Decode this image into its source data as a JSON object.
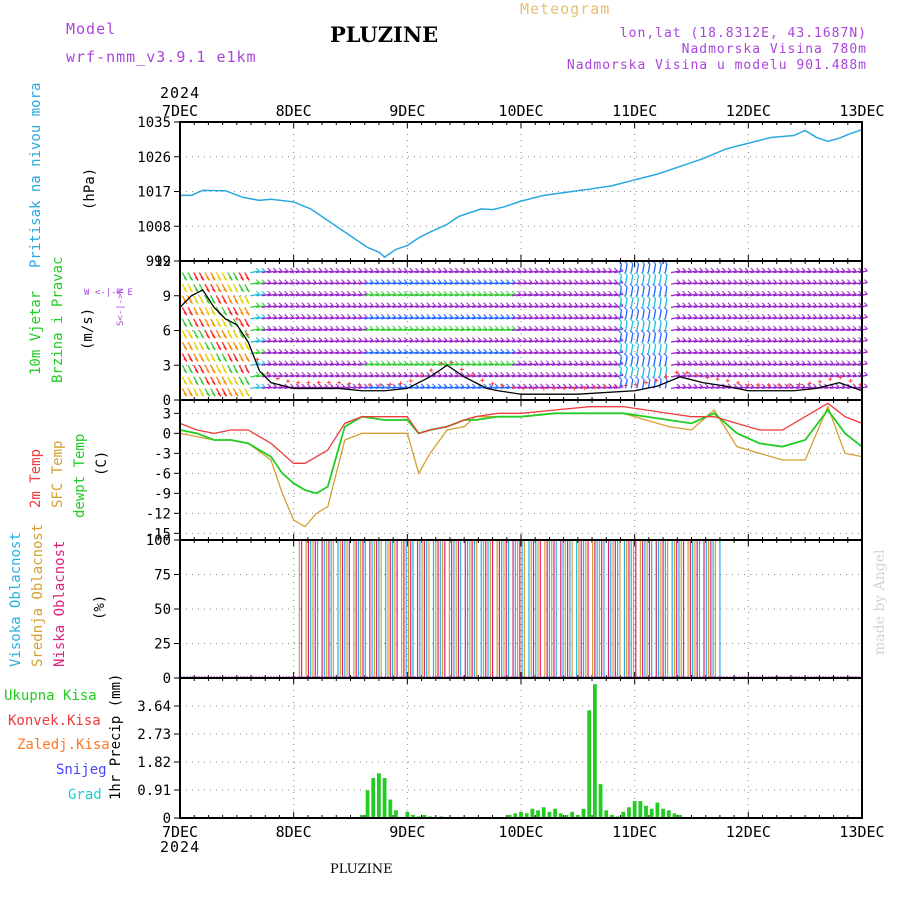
{
  "header": {
    "model_label": "Model",
    "model_name": "wrf-nmm_v3.9.1  e1km",
    "title": "PLUZINE",
    "meteogram": "Meteogram",
    "lonlat": "lon,lat (18.8312E, 43.1687N)",
    "elevation": "Nadmorska Visina 780m",
    "model_elevation": "Nadmorska Visina u modelu 901.488m",
    "footer": "PLUZINE",
    "watermark": "made by Angel"
  },
  "time_axis": {
    "top_year": "2024",
    "bottom_year": "2024",
    "labels": [
      "7DEC",
      "8DEC",
      "9DEC",
      "10DEC",
      "11DEC",
      "12DEC",
      "13DEC"
    ],
    "range_days": [
      0,
      6
    ]
  },
  "colors": {
    "pressure": "#29a8e0",
    "temp2m": "#ee3b3b",
    "sfctemp": "#d4a030",
    "dewpt": "#22cc22",
    "high_cloud": "#29b0e0",
    "mid_cloud": "#d4a030",
    "low_cloud": "#dd2277",
    "precip_total": "#22cc22",
    "precip_conv": "#ee3b3b",
    "precip_frz": "#ff7722",
    "snow": "#4444ff",
    "graupel": "#22cccc",
    "wind_purple": "#9922cc"
  },
  "panels": {
    "pressure": {
      "ylabel": "Pritisak na nivou mora",
      "unit": "(hPa)"
    },
    "wind": {
      "ylabel1": "10m Vjetar",
      "ylabel2": "Brzina i Pravac",
      "unit": "(m/s)",
      "compass": "W <-|-> E",
      "compass_ns": "S<-|->N"
    },
    "temp": {
      "ylabel1": "2m Temp",
      "ylabel2": "SFC Temp",
      "ylabel3": "dewpt Temp",
      "unit": "(C)"
    },
    "cloud": {
      "ylabel1": "Visoka Oblacnost",
      "ylabel2": "Srednja Oblacnost",
      "ylabel3": "Niska Oblacnost",
      "unit": "(%)"
    },
    "precip": {
      "labels": [
        "Ukupna Kisa",
        "Konvek.Kisa",
        "Zaledj.Kisa",
        "Snijeg",
        "Grad"
      ],
      "unit": "1hr Precip (mm)"
    }
  },
  "chart_data": [
    {
      "type": "line",
      "name": "pressure",
      "ylim": [
        999,
        1035
      ],
      "yticks": [
        999,
        1008,
        1017,
        1026,
        1035
      ],
      "ytick_labels": [
        "999",
        "1008",
        "1017",
        "1026",
        "1035"
      ],
      "x": [
        0,
        0.1,
        0.2,
        0.4,
        0.55,
        0.7,
        0.8,
        1.0,
        1.15,
        1.3,
        1.45,
        1.55,
        1.65,
        1.75,
        1.8,
        1.85,
        1.9,
        2.0,
        2.1,
        2.2,
        2.35,
        2.45,
        2.55,
        2.65,
        2.75,
        2.85,
        3.0,
        3.2,
        3.4,
        3.6,
        3.8,
        4.0,
        4.2,
        4.4,
        4.6,
        4.8,
        5.0,
        5.2,
        5.4,
        5.5,
        5.6,
        5.7,
        5.8,
        5.9,
        6.0
      ],
      "series": [
        {
          "values": [
            1016,
            1016,
            1017.3,
            1017.2,
            1015.5,
            1014.7,
            1015,
            1014.3,
            1012.5,
            1009.5,
            1006.5,
            1004.5,
            1002.5,
            1001.3,
            1000,
            1001,
            1002,
            1003,
            1005,
            1006.5,
            1008.5,
            1010.5,
            1011.5,
            1012.5,
            1012.3,
            1013,
            1014.5,
            1016,
            1016.8,
            1017.6,
            1018.5,
            1020,
            1021.5,
            1023.5,
            1025.5,
            1028,
            1029.5,
            1031,
            1031.5,
            1032.8,
            1031,
            1030,
            1030.8,
            1032,
            1033
          ]
        }
      ]
    },
    {
      "type": "line",
      "name": "wind",
      "ylim": [
        0,
        12
      ],
      "yticks": [
        0,
        3,
        6,
        9,
        12
      ],
      "ytick_labels": [
        "0",
        "3",
        "6",
        "9",
        "12"
      ],
      "x": [
        0,
        0.1,
        0.2,
        0.3,
        0.4,
        0.5,
        0.6,
        0.7,
        0.8,
        1.0,
        1.2,
        1.4,
        1.6,
        1.8,
        2.0,
        2.2,
        2.35,
        2.5,
        2.6,
        2.7,
        2.8,
        3.0,
        3.5,
        4.0,
        4.2,
        4.4,
        4.6,
        4.8,
        5.0,
        5.2,
        5.4,
        5.6,
        5.8,
        6.0
      ],
      "series": [
        {
          "name": "speed",
          "values": [
            8,
            9,
            9.5,
            8,
            7,
            6.5,
            5,
            2.5,
            1.5,
            1,
            1,
            1,
            0.8,
            0.8,
            1,
            2,
            3,
            2,
            1.5,
            1,
            0.8,
            0.5,
            0.5,
            0.8,
            1.2,
            2,
            1.5,
            1.2,
            0.8,
            0.8,
            0.8,
            1,
            1.5,
            0.8
          ]
        }
      ]
    },
    {
      "type": "line",
      "name": "temperature",
      "ylim": [
        -16,
        5
      ],
      "yticks": [
        -15,
        -12,
        -9,
        -6,
        -3,
        0,
        3
      ],
      "ytick_labels": [
        "-15",
        "-12",
        "-9",
        "-6",
        "-3",
        "0",
        "3"
      ],
      "x": [
        0,
        0.15,
        0.3,
        0.45,
        0.6,
        0.8,
        0.9,
        1.0,
        1.1,
        1.2,
        1.3,
        1.45,
        1.6,
        1.8,
        2.0,
        2.1,
        2.2,
        2.35,
        2.5,
        2.6,
        2.8,
        3.0,
        3.3,
        3.6,
        3.9,
        4.1,
        4.3,
        4.5,
        4.7,
        4.9,
        5.1,
        5.3,
        5.5,
        5.7,
        5.85,
        6.0
      ],
      "series": [
        {
          "name": "2m Temp",
          "values": [
            1.5,
            0.5,
            0,
            0.5,
            0.5,
            -1.5,
            -3,
            -4.5,
            -4.5,
            -3.5,
            -2.5,
            1.5,
            2.5,
            2.5,
            2.5,
            0,
            0.5,
            1,
            2,
            2.5,
            3,
            3,
            3.5,
            4,
            4,
            3.5,
            3,
            2.5,
            2.5,
            1.5,
            0.5,
            0.5,
            2.5,
            4.5,
            2.5,
            1.5
          ]
        },
        {
          "name": "SFC Temp",
          "values": [
            0,
            -0.5,
            -1,
            -1,
            -1.5,
            -4,
            -9,
            -13,
            -14,
            -12,
            -11,
            -1,
            0,
            0,
            0,
            -6,
            -3,
            0.5,
            1,
            2.5,
            2.5,
            2.5,
            3,
            3,
            3,
            2,
            1,
            0.5,
            3.5,
            -2,
            -3,
            -4,
            -4,
            4,
            -3,
            -3.5
          ]
        },
        {
          "name": "dewpt Temp",
          "values": [
            0.5,
            0,
            -1,
            -1,
            -1.5,
            -3.5,
            -6,
            -7.5,
            -8.5,
            -9,
            -8,
            1,
            2.5,
            2,
            2,
            0,
            0.5,
            1,
            2,
            2,
            2.5,
            2.5,
            3,
            3,
            3,
            2.5,
            2,
            1.5,
            3,
            0,
            -1.5,
            -2,
            -1,
            3.5,
            0,
            -2
          ]
        }
      ]
    },
    {
      "type": "bar",
      "name": "cloud",
      "ylim": [
        0,
        100
      ],
      "yticks": [
        0,
        25,
        50,
        75,
        100
      ],
      "ytick_labels": [
        "0",
        "25",
        "50",
        "75",
        "100"
      ],
      "active_range_days": [
        1.05,
        4.75
      ],
      "series": [
        {
          "name": "Visoka Oblacnost",
          "value_when_active": 100
        },
        {
          "name": "Srednja Oblacnost",
          "value_when_active": 100
        },
        {
          "name": "Niska Oblacnost",
          "value_when_active": 100
        }
      ]
    },
    {
      "type": "bar",
      "name": "precipitation",
      "ylim": [
        0,
        4.55
      ],
      "yticks": [
        0,
        0.91,
        1.82,
        2.73,
        3.64
      ],
      "ytick_labels": [
        "0",
        "0.91",
        "1.82",
        "2.73",
        "3.64"
      ],
      "x": [
        1.6,
        1.65,
        1.7,
        1.75,
        1.8,
        1.85,
        1.9,
        2.0,
        2.05,
        2.1,
        2.15,
        2.2,
        2.3,
        2.9,
        2.95,
        3.0,
        3.05,
        3.1,
        3.15,
        3.2,
        3.25,
        3.3,
        3.35,
        3.4,
        3.45,
        3.5,
        3.55,
        3.6,
        3.65,
        3.7,
        3.75,
        3.8,
        3.85,
        3.9,
        3.95,
        4.0,
        4.05,
        4.1,
        4.15,
        4.2,
        4.25,
        4.3,
        4.35,
        4.4
      ],
      "series": [
        {
          "name": "Ukupna Kisa",
          "values": [
            0.1,
            0.9,
            1.3,
            1.45,
            1.3,
            0.6,
            0.25,
            0.2,
            0.1,
            0.05,
            0.1,
            0.05,
            0.05,
            0.1,
            0.15,
            0.2,
            0.15,
            0.3,
            0.25,
            0.35,
            0.2,
            0.3,
            0.15,
            0.1,
            0.2,
            0.1,
            0.3,
            3.5,
            4.35,
            1.1,
            0.25,
            0.1,
            0.05,
            0.2,
            0.35,
            0.55,
            0.55,
            0.4,
            0.3,
            0.5,
            0.3,
            0.25,
            0.15,
            0.1
          ]
        }
      ]
    }
  ]
}
